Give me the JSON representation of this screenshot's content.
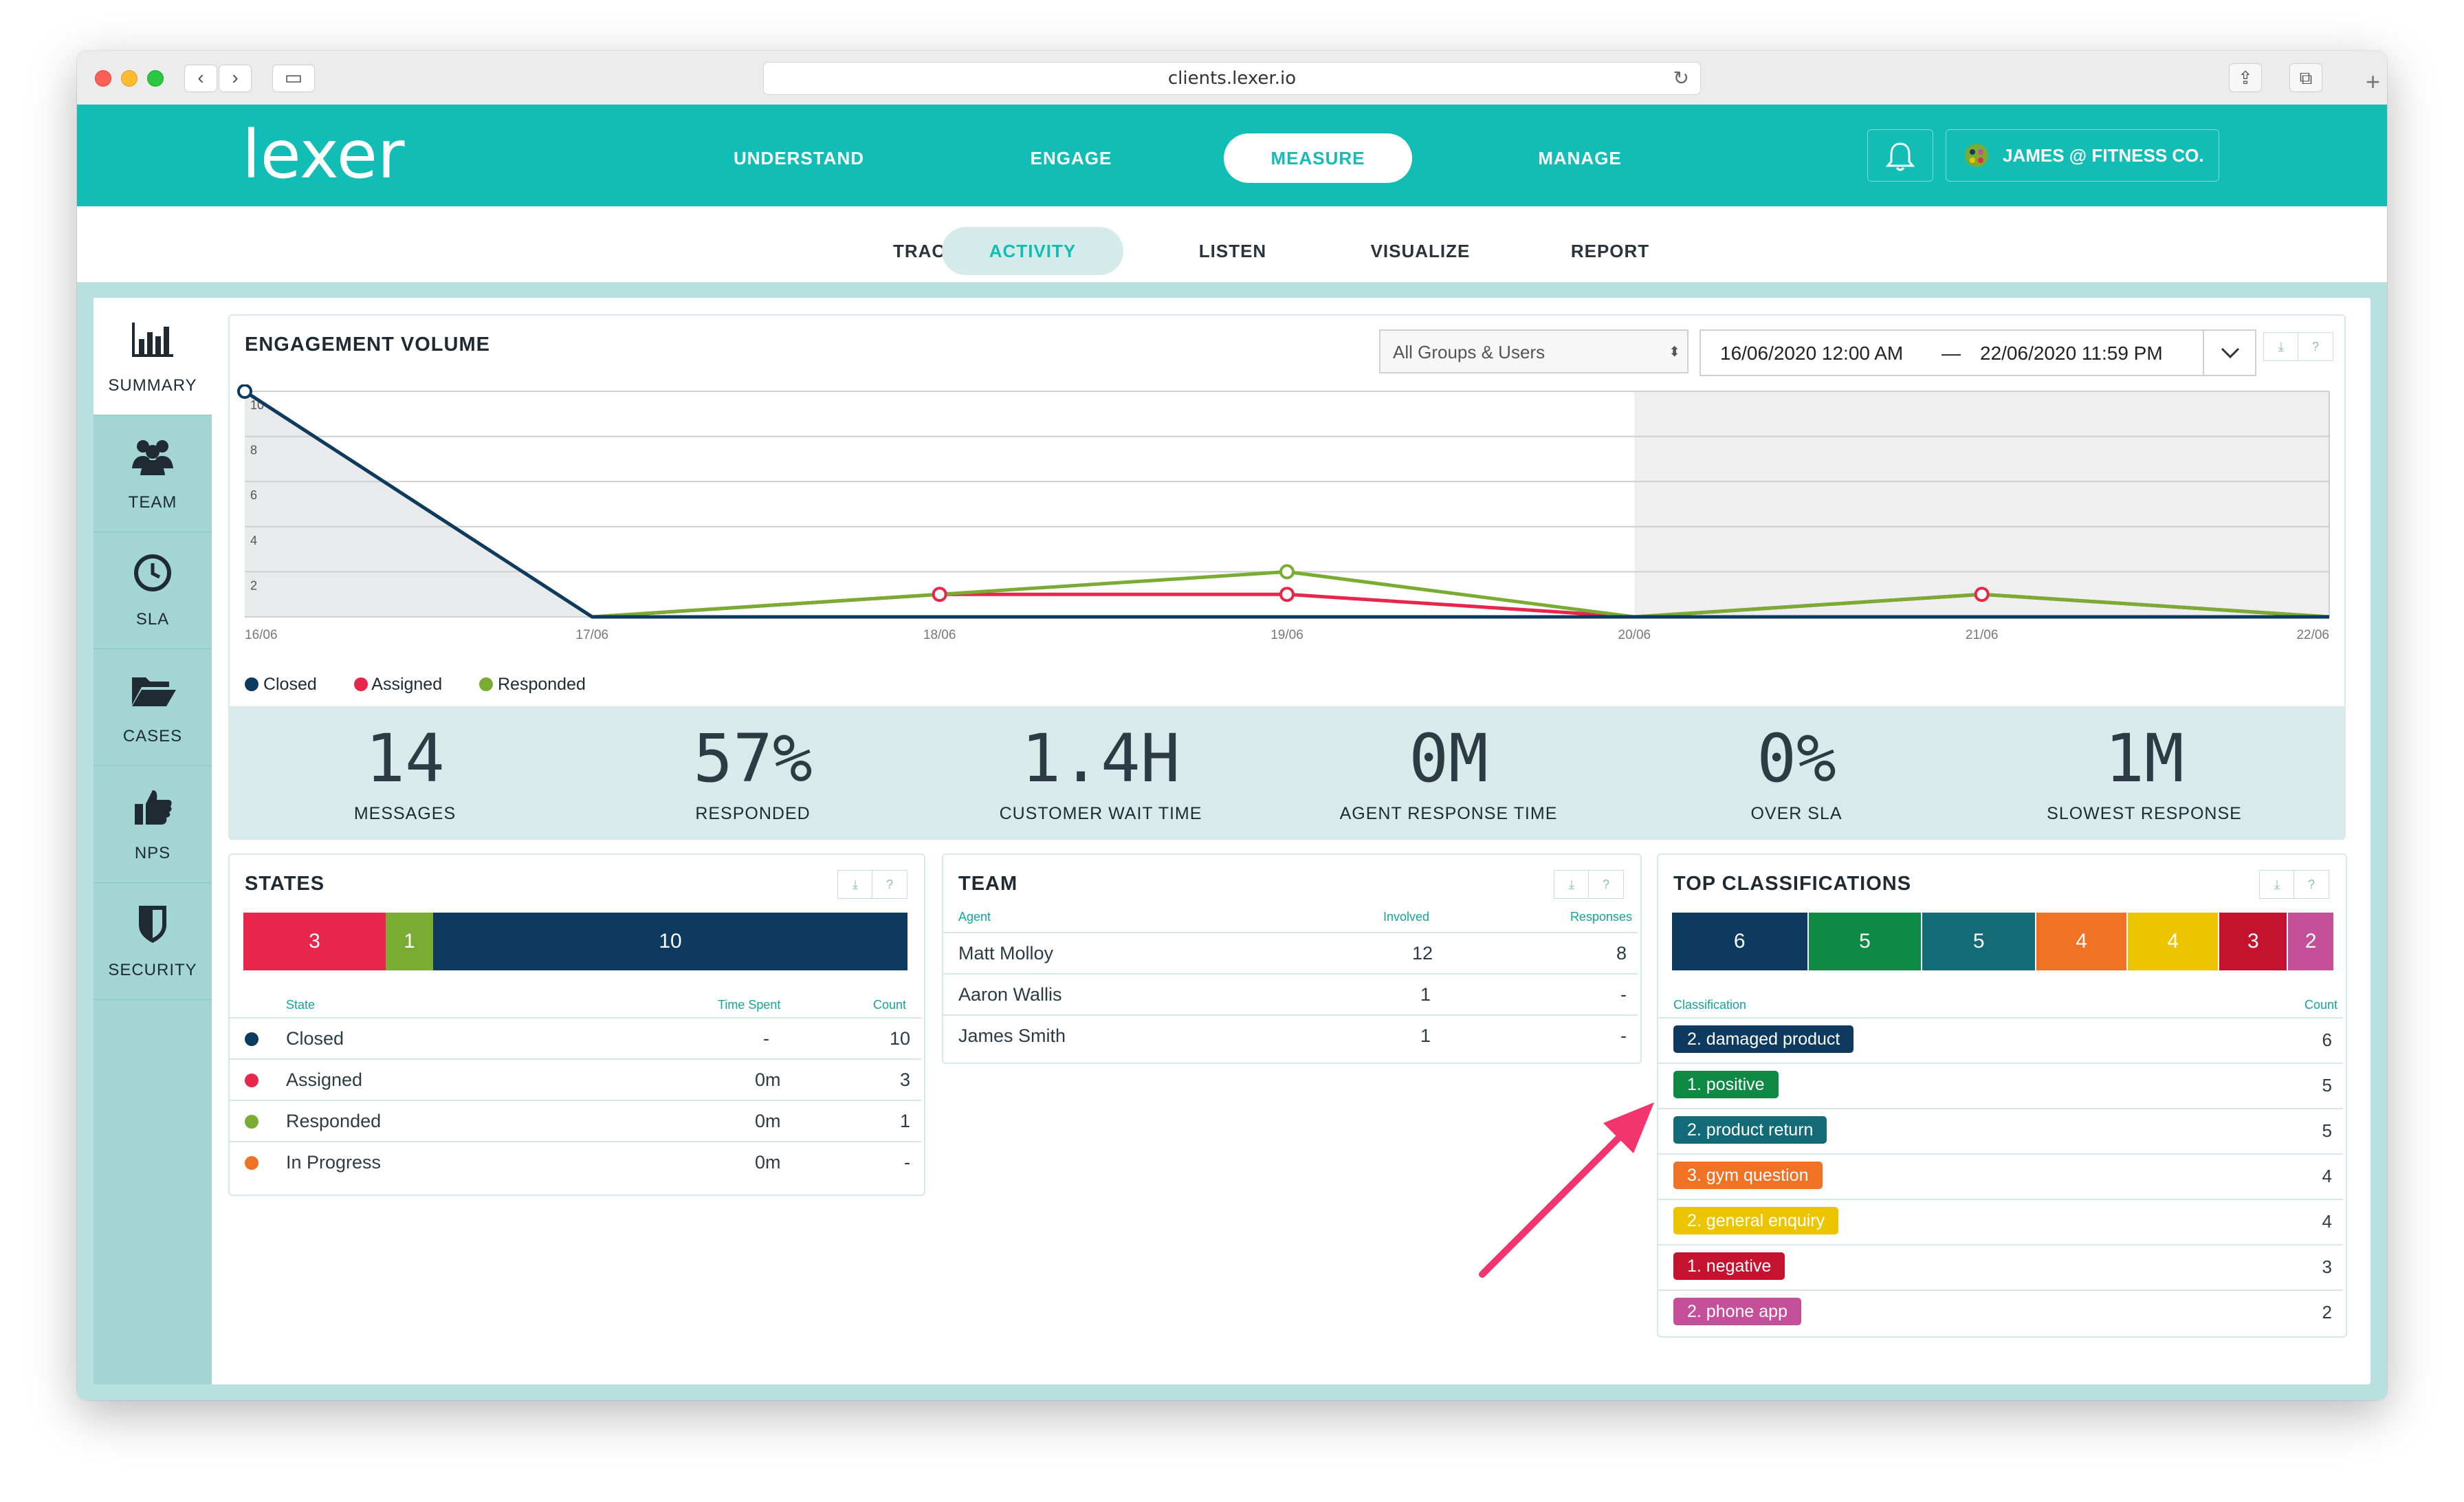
{
  "browser": {
    "url": "clients.lexer.io"
  },
  "brand": {
    "logo_text": "lexer",
    "accent": "#11bdb4"
  },
  "top_nav": {
    "items": [
      "UNDERSTAND",
      "ENGAGE",
      "MEASURE",
      "MANAGE"
    ],
    "active": "MEASURE",
    "user_label": "JAMES @ FITNESS CO."
  },
  "sub_nav": {
    "items": [
      "TRACK",
      "ACTIVITY",
      "LISTEN",
      "VISUALIZE",
      "REPORT"
    ],
    "active": "ACTIVITY"
  },
  "sidebar": {
    "items": [
      {
        "label": "SUMMARY",
        "icon": "bar-chart-icon",
        "active": true
      },
      {
        "label": "TEAM",
        "icon": "team-icon",
        "active": false
      },
      {
        "label": "SLA",
        "icon": "clock-icon",
        "active": false
      },
      {
        "label": "CASES",
        "icon": "folder-icon",
        "active": false
      },
      {
        "label": "NPS",
        "icon": "thumbs-up-icon",
        "active": false
      },
      {
        "label": "SECURITY",
        "icon": "shield-icon",
        "active": false
      }
    ]
  },
  "engagement": {
    "title": "ENGAGEMENT VOLUME",
    "group_select": "All Groups & Users",
    "date_start": "16/06/2020 12:00 AM",
    "date_sep": "—",
    "date_end": "22/06/2020 11:59 PM",
    "download_icon": "download-icon",
    "help_label": "?"
  },
  "chart_data": {
    "type": "line",
    "x": [
      "16/06",
      "17/06",
      "18/06",
      "19/06",
      "20/06",
      "21/06",
      "22/06"
    ],
    "y_ticks": [
      "2",
      "4",
      "6",
      "8",
      "10"
    ],
    "ylim": [
      0,
      10
    ],
    "grid": true,
    "legend_position": "bottom-left",
    "shaded_from": "20/06",
    "series": [
      {
        "name": "Closed",
        "color": "#0d3a5e",
        "values": [
          10,
          0,
          0,
          0,
          0,
          0,
          0
        ]
      },
      {
        "name": "Assigned",
        "color": "#e8254a",
        "values": [
          null,
          0,
          1,
          1,
          0,
          1,
          0
        ]
      },
      {
        "name": "Responded",
        "color": "#7aab33",
        "values": [
          10,
          0,
          1,
          2,
          0,
          1,
          0
        ]
      }
    ]
  },
  "stats": [
    {
      "value": "14",
      "label": "MESSAGES"
    },
    {
      "value": "57%",
      "label": "RESPONDED"
    },
    {
      "value": "1.4H",
      "label": "CUSTOMER WAIT TIME"
    },
    {
      "value": "0M",
      "label": "AGENT RESPONSE TIME"
    },
    {
      "value": "0%",
      "label": "OVER SLA"
    },
    {
      "value": "1M",
      "label": "SLOWEST RESPONSE"
    }
  ],
  "states": {
    "title": "STATES",
    "bar": [
      {
        "value": "3",
        "color": "#e8254a",
        "count": 3
      },
      {
        "value": "1",
        "color": "#7aab33",
        "count": 1
      },
      {
        "value": "10",
        "color": "#0d3a5e",
        "count": 10
      }
    ],
    "headers": {
      "state": "State",
      "time": "Time Spent",
      "count": "Count"
    },
    "rows": [
      {
        "state": "Closed",
        "color": "#0d3a5e",
        "time": "-",
        "count": "10"
      },
      {
        "state": "Assigned",
        "color": "#e8254a",
        "time": "0m",
        "count": "3"
      },
      {
        "state": "Responded",
        "color": "#7aab33",
        "time": "0m",
        "count": "1"
      },
      {
        "state": "In Progress",
        "color": "#f07224",
        "time": "0m",
        "count": "-"
      }
    ]
  },
  "team": {
    "title": "TEAM",
    "headers": {
      "agent": "Agent",
      "involved": "Involved",
      "responses": "Responses"
    },
    "rows": [
      {
        "agent": "Matt Molloy",
        "involved": "12",
        "responses": "8"
      },
      {
        "agent": "Aaron Wallis",
        "involved": "1",
        "responses": "-"
      },
      {
        "agent": "James Smith",
        "involved": "1",
        "responses": "-"
      }
    ]
  },
  "classifications": {
    "title": "TOP CLASSIFICATIONS",
    "bar": [
      {
        "value": "6",
        "color": "#0d3a5e",
        "count": 6
      },
      {
        "value": "5",
        "color": "#0e8a45",
        "count": 5
      },
      {
        "value": "5",
        "color": "#136b77",
        "count": 5
      },
      {
        "value": "4",
        "color": "#f07224",
        "count": 4
      },
      {
        "value": "4",
        "color": "#ecc500",
        "count": 4
      },
      {
        "value": "3",
        "color": "#c4122f",
        "count": 3
      },
      {
        "value": "2",
        "color": "#c4509a",
        "count": 2
      }
    ],
    "headers": {
      "classification": "Classification",
      "count": "Count"
    },
    "rows": [
      {
        "label": "2. damaged product",
        "color": "#0d3a5e",
        "count": "6"
      },
      {
        "label": "1. positive",
        "color": "#0e8a45",
        "count": "5"
      },
      {
        "label": "2. product return",
        "color": "#136b77",
        "count": "5"
      },
      {
        "label": "3. gym question",
        "color": "#f07224",
        "count": "4"
      },
      {
        "label": "2. general enquiry",
        "color": "#ecc500",
        "count": "4"
      },
      {
        "label": "1. negative",
        "color": "#c4122f",
        "count": "3"
      },
      {
        "label": "2. phone app",
        "color": "#c4509a",
        "count": "2"
      }
    ]
  },
  "annotation": {
    "arrow_color": "#f2356d"
  }
}
